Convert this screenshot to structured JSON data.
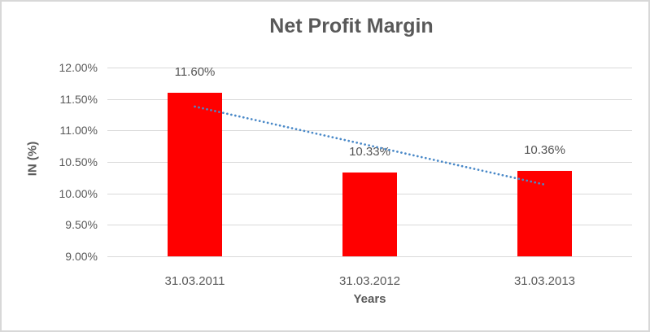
{
  "window": {
    "background_color": "#ffffff",
    "border_color": "#d8d8d8"
  },
  "chart_data": {
    "type": "bar",
    "title": "Net Profit Margin",
    "xlabel": "Years",
    "ylabel": "IN (%)",
    "categories": [
      "31.03.2011",
      "31.03.2012",
      "31.03.2013"
    ],
    "values": [
      11.6,
      10.33,
      10.36
    ],
    "data_labels": [
      "11.60%",
      "10.33%",
      "10.36%"
    ],
    "ylim": [
      9.0,
      12.0
    ],
    "yticks": [
      {
        "value": 12.0,
        "label": "12.00%"
      },
      {
        "value": 11.5,
        "label": "11.50%"
      },
      {
        "value": 11.0,
        "label": "11.00%"
      },
      {
        "value": 10.5,
        "label": "10.50%"
      },
      {
        "value": 10.0,
        "label": "10.00%"
      },
      {
        "value": 9.5,
        "label": "9.50%"
      },
      {
        "value": 9.0,
        "label": "9.00%"
      }
    ],
    "grid": true,
    "legend": "none",
    "bar_color": "#ff0000",
    "text_color": "#595959",
    "gridline_color": "#d9d9d9",
    "trendline": {
      "type": "linear",
      "style": "dotted",
      "color": "#4a89c8",
      "start_value": 11.38,
      "end_value": 10.14
    }
  }
}
